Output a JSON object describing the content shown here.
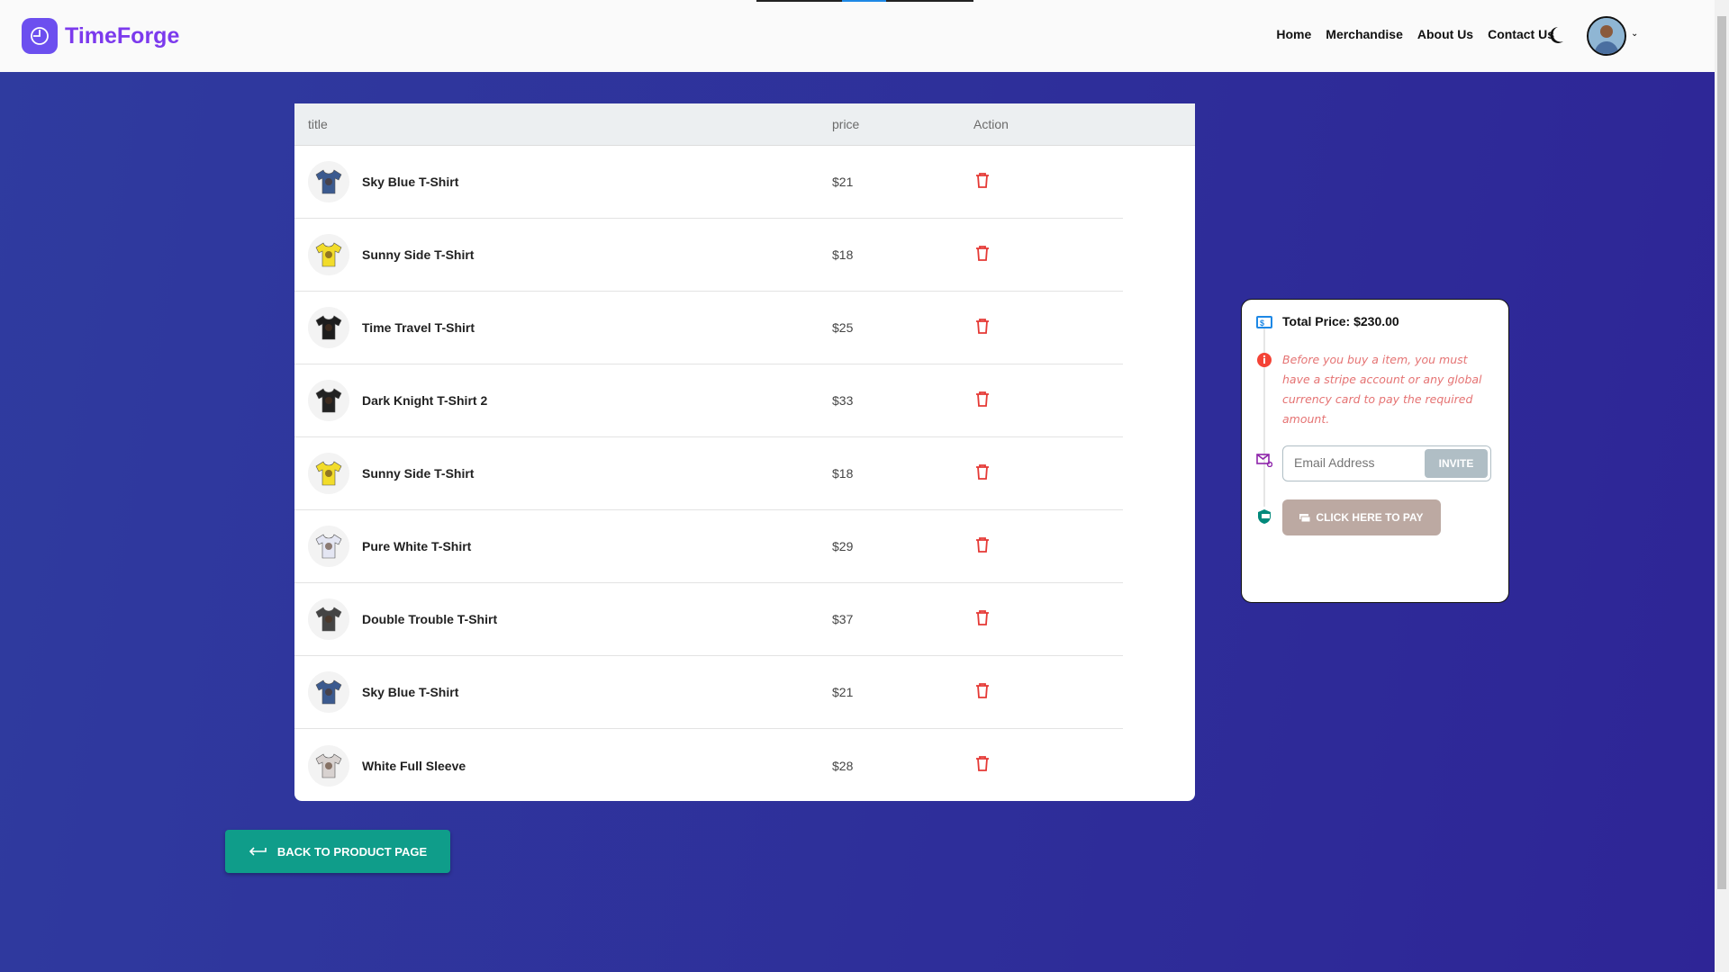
{
  "header": {
    "brand": "TimeForge",
    "nav": [
      "Home",
      "Merchandise",
      "About Us",
      "Contact Us"
    ]
  },
  "colors": {
    "brand": "#7c3aed",
    "accent": "#0f9d8a",
    "delete": "#e53935"
  },
  "table": {
    "columns": [
      "title",
      "price",
      "Action"
    ],
    "rows": [
      {
        "title": "Sky Blue T-Shirt",
        "price": "$21",
        "color": "#3b5a8f"
      },
      {
        "title": "Sunny Side T-Shirt",
        "price": "$18",
        "color": "#f2dc2a"
      },
      {
        "title": "Time Travel T-Shirt",
        "price": "$25",
        "color": "#1d1d1d"
      },
      {
        "title": "Dark Knight T-Shirt 2",
        "price": "$33",
        "color": "#222"
      },
      {
        "title": "Sunny Side T-Shirt",
        "price": "$18",
        "color": "#f2dc2a"
      },
      {
        "title": "Pure White T-Shirt",
        "price": "$29",
        "color": "#e4e6f3"
      },
      {
        "title": "Double Trouble T-Shirt",
        "price": "$37",
        "color": "#444"
      },
      {
        "title": "Sky Blue T-Shirt",
        "price": "$21",
        "color": "#3b5a8f"
      },
      {
        "title": "White Full Sleeve",
        "price": "$28",
        "color": "#d8d2d0"
      }
    ]
  },
  "checkout": {
    "total": "Total Price: $230.00",
    "warning": "Before you buy a item, you must have a stripe account or any global currency card to pay the required amount.",
    "email_placeholder": "Email Address",
    "invite_label": "INVITE",
    "pay_label": "CLICK HERE TO PAY"
  },
  "back_label": "BACK TO PRODUCT PAGE"
}
